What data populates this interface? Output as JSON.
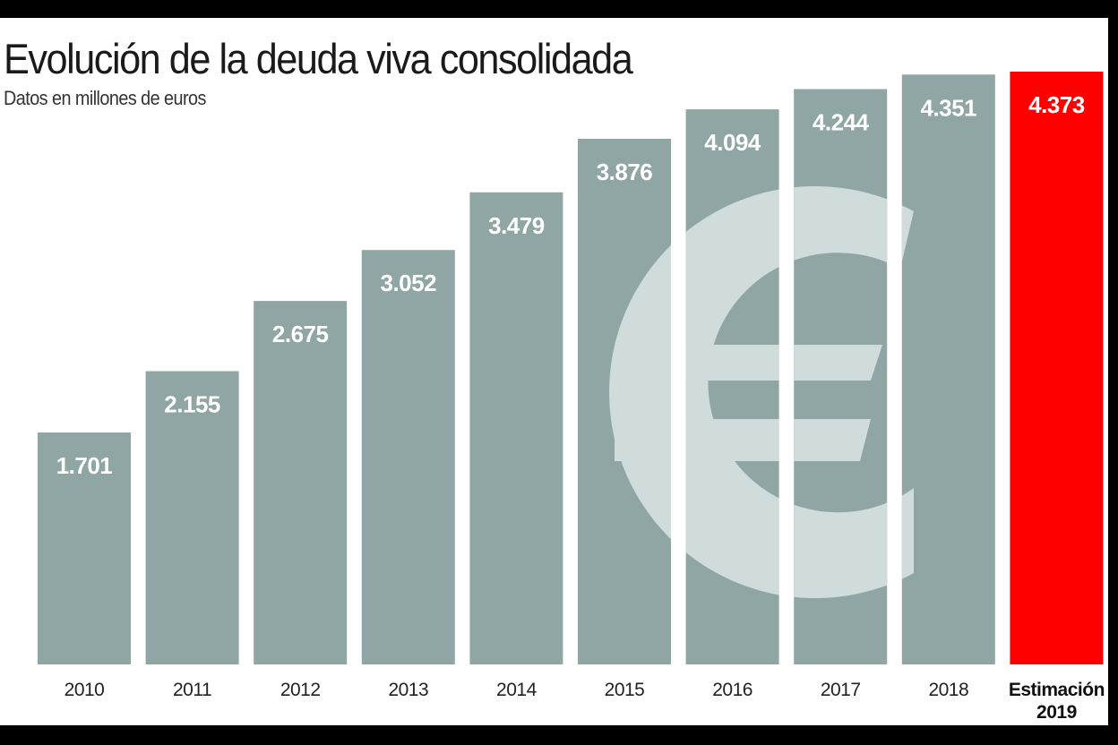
{
  "chart_data": {
    "type": "bar",
    "title": "Evolución de la deuda viva consolidada",
    "subtitle": "Datos en millones de euros",
    "xlabel": "",
    "ylabel": "",
    "categories": [
      "2010",
      "2011",
      "2012",
      "2013",
      "2014",
      "2015",
      "2016",
      "2017",
      "2018",
      "Estimación 2019"
    ],
    "category_lines": [
      [
        "2010"
      ],
      [
        "2011"
      ],
      [
        "2012"
      ],
      [
        "2013"
      ],
      [
        "2014"
      ],
      [
        "2015"
      ],
      [
        "2016"
      ],
      [
        "2017"
      ],
      [
        "2018"
      ],
      [
        "Estimación",
        "2019"
      ]
    ],
    "values": [
      1701,
      2155,
      2675,
      3052,
      3479,
      3876,
      4094,
      4244,
      4351,
      4373
    ],
    "value_labels": [
      "1.701",
      "2.155",
      "2.675",
      "3.052",
      "3.479",
      "3.876",
      "4.094",
      "4.244",
      "4.351",
      "4.373"
    ],
    "highlight_index": 9,
    "colors": {
      "bar": "#8fa6a4",
      "highlight": "#ff0000",
      "euro_watermark": "#cfdcdb",
      "background": "#ffffff"
    },
    "decoration": "euro-symbol",
    "grid": false,
    "legend": "none",
    "ylim": [
      0,
      4600
    ]
  }
}
